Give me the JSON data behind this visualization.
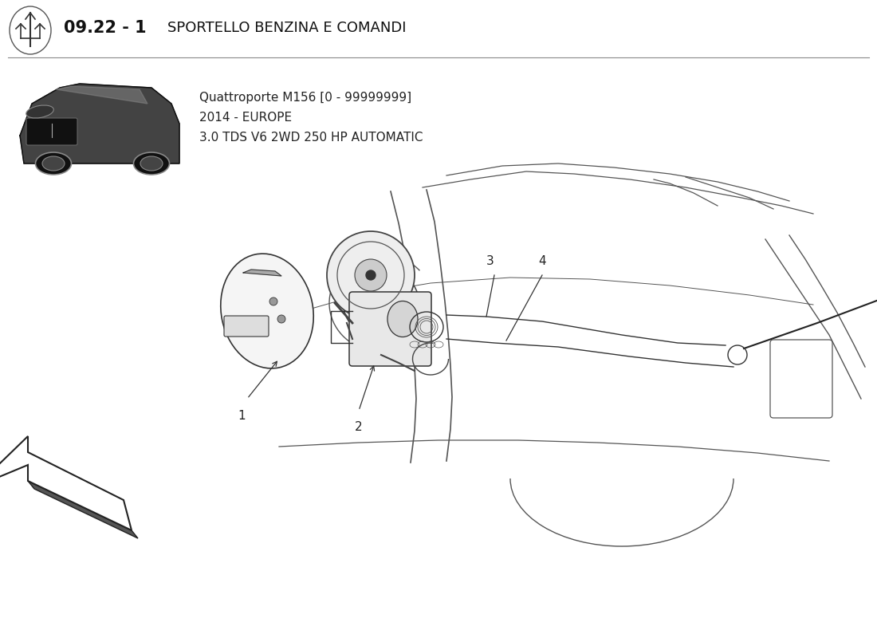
{
  "title_number": "09.22 - 1",
  "title_text": "SPORTELLO BENZINA E COMANDI",
  "subtitle_line1": "Quattroporte M156 [0 - 99999999]",
  "subtitle_line2": "2014 - EUROPE",
  "subtitle_line3": "3.0 TDS V6 2WD 250 HP AUTOMATIC",
  "bg_color": "#ffffff",
  "line_color": "#444444",
  "text_color": "#222222",
  "header_color": "#111111",
  "diagram_line_color": "#555555"
}
